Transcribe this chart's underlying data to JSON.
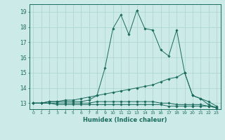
{
  "xlabel": "Humidex (Indice chaleur)",
  "ylabel": "",
  "bg_color": "#cceae7",
  "line_color": "#1a6b5e",
  "grid_color": "#aad4cf",
  "xlim": [
    -0.5,
    23.5
  ],
  "ylim": [
    12.6,
    19.5
  ],
  "yticks": [
    13,
    14,
    15,
    16,
    17,
    18,
    19
  ],
  "xticks": [
    0,
    1,
    2,
    3,
    4,
    5,
    6,
    7,
    8,
    9,
    10,
    11,
    12,
    13,
    14,
    15,
    16,
    17,
    18,
    19,
    20,
    21,
    22,
    23
  ],
  "series": [
    {
      "x": [
        0,
        1,
        2,
        3,
        4,
        5,
        6,
        7,
        8,
        9,
        10,
        11,
        12,
        13,
        14,
        15,
        16,
        17,
        18,
        19,
        20,
        21,
        22,
        23
      ],
      "y": [
        13.0,
        13.0,
        13.0,
        12.9,
        12.9,
        12.9,
        12.9,
        12.9,
        12.9,
        12.9,
        12.9,
        12.9,
        12.9,
        12.9,
        12.9,
        12.9,
        12.9,
        12.8,
        12.8,
        12.8,
        12.8,
        12.8,
        12.8,
        12.7
      ]
    },
    {
      "x": [
        0,
        1,
        2,
        3,
        4,
        5,
        6,
        7,
        8,
        9,
        10,
        11,
        12,
        13,
        14,
        15,
        16,
        17,
        18,
        19,
        20,
        21,
        22,
        23
      ],
      "y": [
        13.0,
        13.0,
        13.0,
        13.0,
        13.0,
        13.0,
        13.0,
        13.0,
        13.1,
        13.1,
        13.1,
        13.1,
        13.1,
        13.1,
        13.1,
        13.1,
        13.0,
        13.0,
        12.9,
        12.9,
        12.9,
        12.9,
        12.8,
        12.7
      ]
    },
    {
      "x": [
        0,
        1,
        2,
        3,
        4,
        5,
        6,
        7,
        8,
        9,
        10,
        11,
        12,
        13,
        14,
        15,
        16,
        17,
        18,
        19,
        20,
        21,
        22,
        23
      ],
      "y": [
        13.0,
        13.0,
        13.1,
        13.1,
        13.2,
        13.2,
        13.3,
        13.4,
        13.5,
        13.6,
        13.7,
        13.8,
        13.9,
        14.0,
        14.1,
        14.2,
        14.4,
        14.6,
        14.7,
        15.0,
        13.5,
        13.3,
        13.1,
        12.8
      ]
    },
    {
      "x": [
        0,
        1,
        2,
        3,
        4,
        5,
        6,
        7,
        8,
        9,
        10,
        11,
        12,
        13,
        14,
        15,
        16,
        17,
        18,
        19,
        20,
        21,
        22,
        23
      ],
      "y": [
        13.0,
        13.0,
        13.1,
        13.1,
        13.1,
        13.1,
        13.1,
        13.2,
        13.5,
        15.3,
        17.9,
        18.8,
        17.5,
        19.1,
        17.9,
        17.8,
        16.5,
        16.1,
        17.8,
        15.0,
        13.5,
        13.3,
        12.9,
        12.7
      ]
    }
  ]
}
